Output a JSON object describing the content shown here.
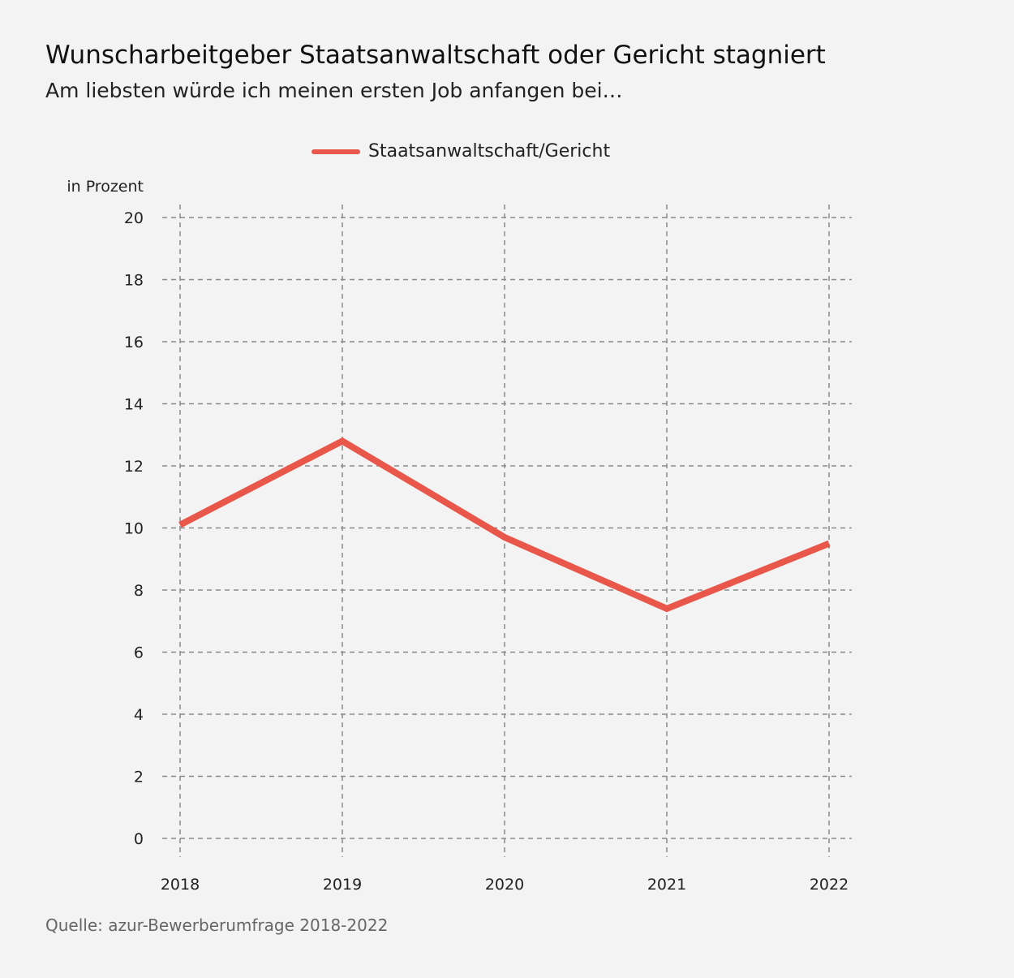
{
  "header": {
    "title": "Wunscharbeitgeber Staatsanwaltschaft oder Gericht stagniert",
    "subtitle": "Am liebsten würde ich meinen ersten Job anfangen bei…"
  },
  "footer": {
    "source": "Quelle: azur-Bewerberumfrage 2018-2022"
  },
  "colors": {
    "line": "#e8574a",
    "grid": "#8a8a8a",
    "background": "#f3f3f3"
  },
  "chart_data": {
    "type": "line",
    "title": "Wunscharbeitgeber Staatsanwaltschaft oder Gericht stagniert",
    "subtitle": "Am liebsten würde ich meinen ersten Job anfangen bei…",
    "ylabel": "in Prozent",
    "xlabel": "",
    "x": [
      "2018",
      "2019",
      "2020",
      "2021",
      "2022"
    ],
    "series": [
      {
        "name": "Staatsanwaltschaft/Gericht",
        "values": [
          10.1,
          12.8,
          9.7,
          7.4,
          9.5
        ]
      }
    ],
    "ylim": [
      0,
      20
    ],
    "yticks": [
      0,
      2,
      4,
      6,
      8,
      10,
      12,
      14,
      16,
      18,
      20
    ],
    "grid": true,
    "grid_style": "dashed",
    "legend_position": "top-center"
  }
}
